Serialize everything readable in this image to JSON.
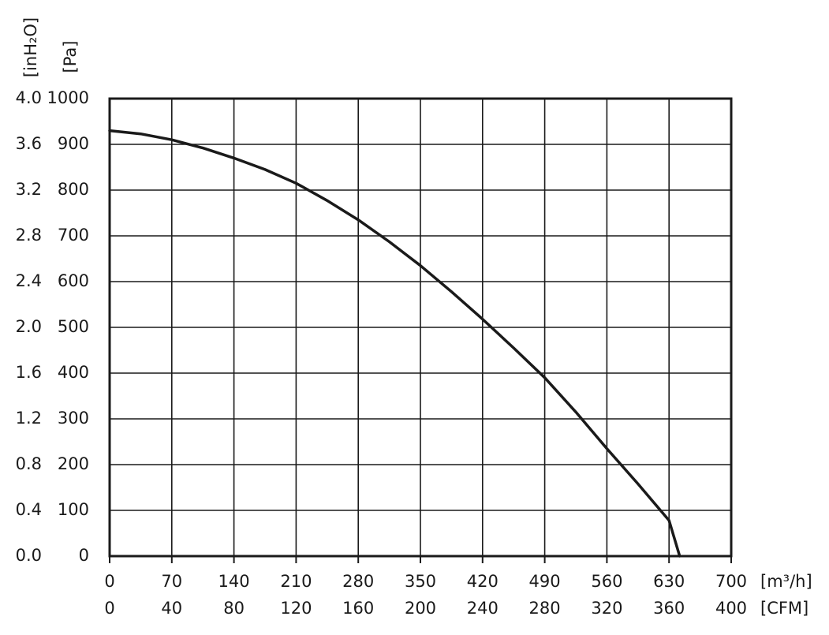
{
  "chart_data": {
    "type": "line",
    "x": [
      0,
      35,
      70,
      105,
      140,
      175,
      210,
      245,
      280,
      315,
      350,
      385,
      420,
      455,
      490,
      525,
      560,
      595,
      630,
      642
    ],
    "values": [
      930,
      923,
      910,
      892,
      870,
      845,
      815,
      777,
      735,
      687,
      635,
      578,
      518,
      455,
      390,
      315,
      235,
      158,
      78,
      0
    ],
    "color": "#1a1a1a",
    "xlim": [
      0,
      700
    ],
    "xticks": [
      0,
      70,
      140,
      210,
      280,
      350,
      420,
      490,
      560,
      630,
      700
    ],
    "x_label": "[m³/h]",
    "x2lim": [
      0,
      400
    ],
    "x2ticks": [
      0,
      40,
      80,
      120,
      160,
      200,
      240,
      280,
      320,
      360,
      400
    ],
    "x2_label": "[CFM]",
    "ylim": [
      0,
      1000
    ],
    "yticks": [
      0,
      100,
      200,
      300,
      400,
      500,
      600,
      700,
      800,
      900,
      1000
    ],
    "y_label": "[Pa]",
    "y2lim": [
      0,
      4
    ],
    "y2ticks": [
      {
        "value": 0,
        "label": "0.0"
      },
      0.4,
      0.8,
      1.2,
      1.6,
      {
        "value": 2,
        "label": "2.0"
      },
      2.4,
      2.8,
      3.2,
      3.6,
      {
        "value": 4,
        "label": "4.0"
      }
    ],
    "y2_label": "[inH₂O]",
    "grid": true
  }
}
